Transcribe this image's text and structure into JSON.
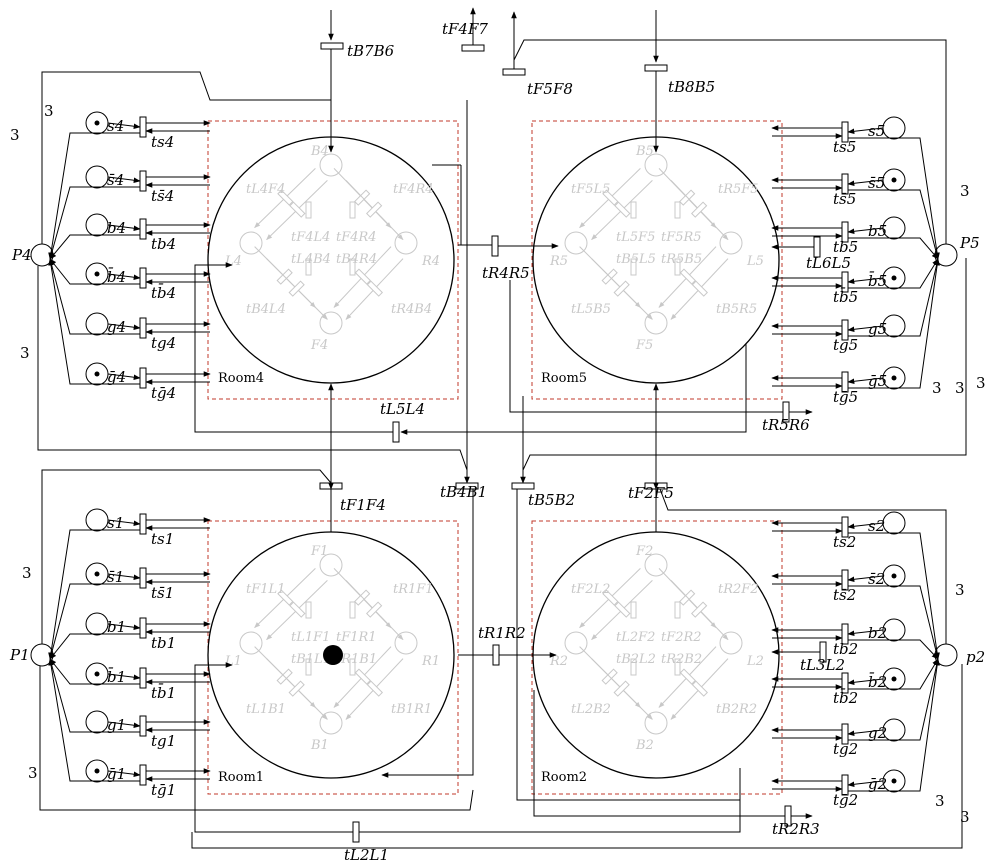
{
  "rooms": [
    {
      "id": "room4",
      "label": "Room4",
      "places": [
        "B4",
        "F4",
        "L4",
        "R4"
      ],
      "inner": [
        "tL4F4",
        "tF4R4",
        "tF4L4",
        "tF4R4",
        "tL4B4",
        "tB4R4",
        "tB4L4",
        "tR4B4"
      ]
    },
    {
      "id": "room5",
      "label": "Room5",
      "places": [
        "B5",
        "F5",
        "R5",
        "L5"
      ],
      "inner": [
        "tF5L5",
        "tR5F5",
        "tL5F5",
        "tF5R5",
        "tB5L5",
        "tR5B5",
        "tL5B5",
        "tB5R5"
      ]
    },
    {
      "id": "room1",
      "label": "Room1",
      "places": [
        "F1",
        "B1",
        "L1",
        "R1"
      ],
      "inner": [
        "tF1L1",
        "tR1F1",
        "tL1F1",
        "tF1R1",
        "tB1L1",
        "tR1B1",
        "tL1B1",
        "tB1R1"
      ]
    },
    {
      "id": "room2",
      "label": "Room2",
      "places": [
        "F2",
        "B2",
        "R2",
        "L2"
      ],
      "inner": [
        "tF2L2",
        "tR2F2",
        "tL2F2",
        "tF2R2",
        "tB2L2",
        "tR2B2",
        "tL2B2",
        "tB2R2"
      ]
    }
  ],
  "sensor_places": {
    "room4": [
      "s4",
      "s̄4",
      "b4",
      "b̄4",
      "g4",
      "ḡ4"
    ],
    "room5": [
      "s5",
      "s̄5",
      "b5",
      "b̄5",
      "g5",
      "ḡ5"
    ],
    "room1": [
      "s1",
      "s̄1",
      "b1",
      "b̄1",
      "g1",
      "ḡ1"
    ],
    "room2": [
      "s2",
      "s̄2",
      "b2",
      "b̄2",
      "g2",
      "ḡ2"
    ]
  },
  "power_places": {
    "p4": "P4",
    "p5": "P5",
    "p1": "P1",
    "p2": "p2"
  },
  "transitions": {
    "t_B7B6": "tB7B6",
    "t_F4F7": "tF4F7",
    "t_F5F8": "tF5F8",
    "t_B8B5": "tB8B5",
    "t_R4R5": "tR4R5",
    "t_L6L5": "tL6L5",
    "t_L5L4": "tL5L4",
    "t_R5R6": "tR5R6",
    "t_F1F4": "tF1F4",
    "t_B4B1": "tB4B1",
    "t_B5B2": "tB5B2",
    "t_F2F5": "tF2F5",
    "t_R1R2": "tR1R2",
    "t_L3L2": "tL3L2",
    "t_L2L1": "tL2L1",
    "t_R2R3": "tR2R3"
  },
  "weights": [
    "3",
    "3",
    "3",
    "3",
    "3",
    "3",
    "3",
    "3",
    "3",
    "3",
    "3",
    "3"
  ]
}
